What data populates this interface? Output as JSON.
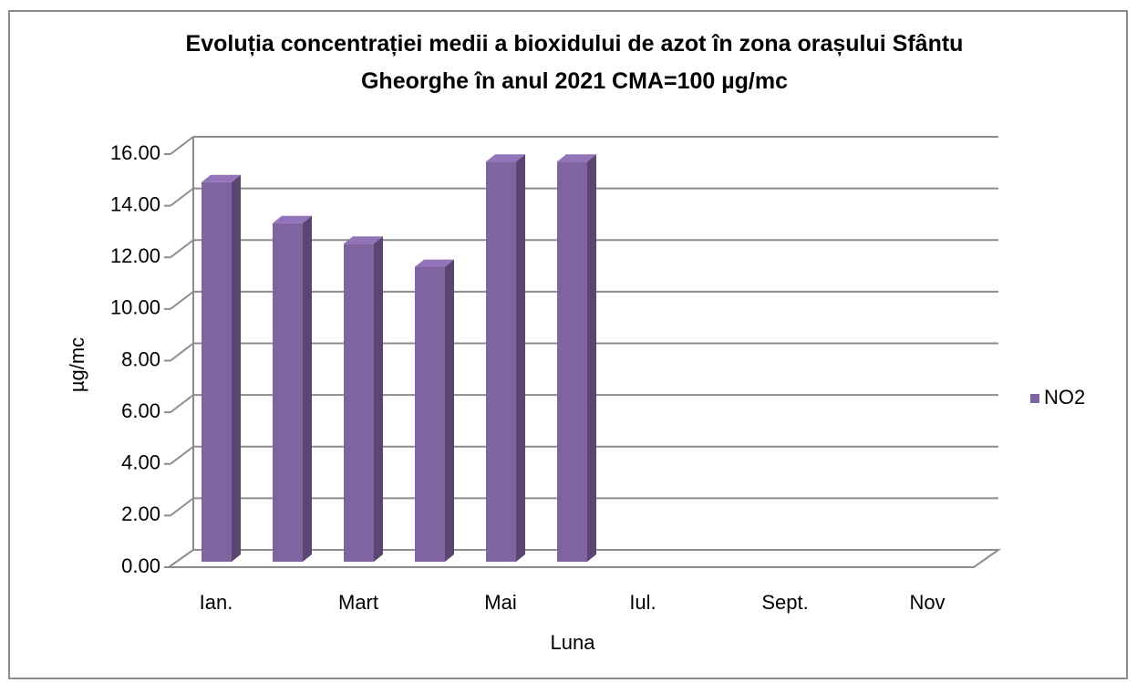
{
  "chart_data": {
    "type": "bar3d",
    "title": "Evoluția concentrației medii a bioxidului de azot în zona orașului Sfântu Gheorghe în anul 2021  CMA=100 µg/mc",
    "x_label": "Luna",
    "y_label": "µg/mc",
    "categories": [
      "Ian.",
      null,
      "Mart",
      null,
      "Mai",
      null,
      "Iul.",
      null,
      "Sept.",
      null,
      "Nov",
      null
    ],
    "series": [
      {
        "name": "NO2",
        "color": "#8064a2",
        "values": [
          14.8,
          13.2,
          12.4,
          11.5,
          15.6,
          15.6,
          null,
          null,
          null,
          null,
          null,
          null
        ]
      }
    ],
    "ylim": [
      0,
      16
    ],
    "yticks": [
      {
        "value": 0,
        "label": "0.00"
      },
      {
        "value": 2,
        "label": "2.00"
      },
      {
        "value": 4,
        "label": "4.00"
      },
      {
        "value": 6,
        "label": "6.00"
      },
      {
        "value": 8,
        "label": "8.00"
      },
      {
        "value": 10,
        "label": "10.00"
      },
      {
        "value": 12,
        "label": "12.00"
      },
      {
        "value": 14,
        "label": "14.00"
      },
      {
        "value": 16,
        "label": "16.00"
      }
    ],
    "grid": true,
    "legend": "right"
  }
}
